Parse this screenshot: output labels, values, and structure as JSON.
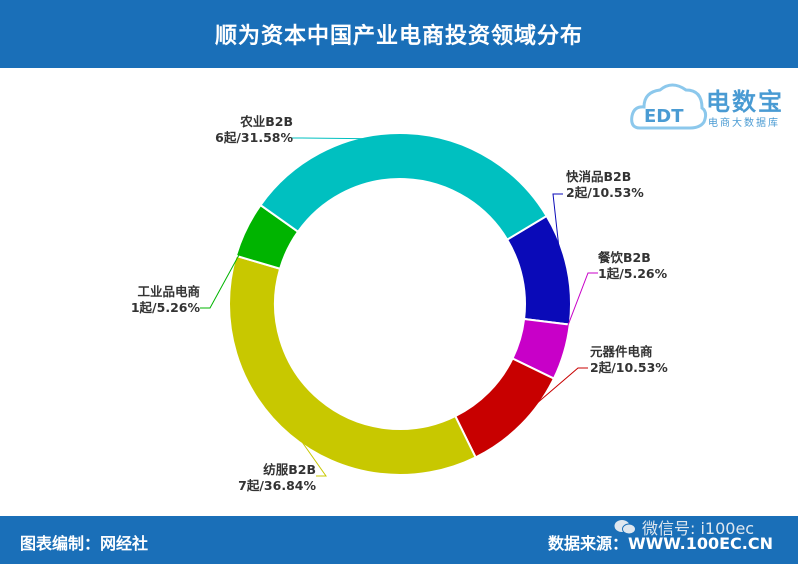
{
  "header": {
    "title": "顺为资本中国产业电商投资领域分布"
  },
  "footer": {
    "left": "图表编制：网经社",
    "right": "数据来源：WWW.100EC.CN",
    "wechat": "微信号: i100ec"
  },
  "logo": {
    "brand": "电数宝",
    "sub": "电商大数据库",
    "mark": "EDT"
  },
  "chart_data": {
    "type": "pie",
    "donut": true,
    "slices": [
      {
        "name": "快消品B2B",
        "count": 2,
        "label": "2起/10.53%",
        "percent": 10.53,
        "color": "#0a0ab8"
      },
      {
        "name": "餐饮B2B",
        "count": 1,
        "label": "1起/5.26%",
        "percent": 5.26,
        "color": "#c800c8"
      },
      {
        "name": "元器件电商",
        "count": 2,
        "label": "2起/10.53%",
        "percent": 10.53,
        "color": "#c80000"
      },
      {
        "name": "纺服B2B",
        "count": 7,
        "label": "7起/36.84%",
        "percent": 36.84,
        "color": "#c8c800"
      },
      {
        "name": "工业品电商",
        "count": 1,
        "label": "1起/5.26%",
        "percent": 5.26,
        "color": "#00b400"
      },
      {
        "name": "农业B2B",
        "count": 6,
        "label": "6起/31.58%",
        "percent": 31.58,
        "color": "#00c0c0"
      }
    ]
  }
}
